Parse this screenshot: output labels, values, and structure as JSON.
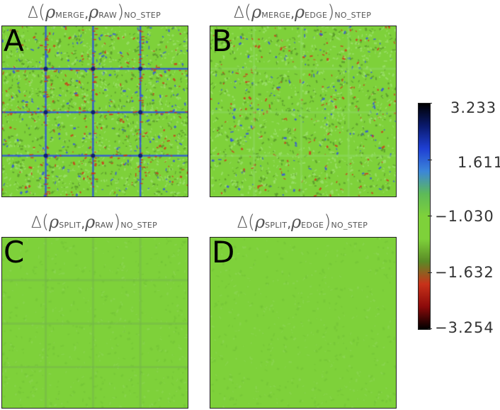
{
  "panels": [
    {
      "letter": "A",
      "rho1_sub": "MERGE",
      "rho2_sub": "RAW",
      "subscript": "NO_STEP",
      "intensity": 1.0,
      "grid_strength": 1.0,
      "grid_style": "strong"
    },
    {
      "letter": "B",
      "rho1_sub": "MERGE",
      "rho2_sub": "EDGE",
      "subscript": "NO_STEP",
      "intensity": 0.75,
      "grid_strength": 0.35,
      "grid_style": "soft"
    },
    {
      "letter": "C",
      "rho1_sub": "SPLIT",
      "rho2_sub": "RAW",
      "subscript": "NO_STEP",
      "intensity": 0.12,
      "grid_strength": 0.25,
      "grid_style": "faint"
    },
    {
      "letter": "D",
      "rho1_sub": "SPLIT",
      "rho2_sub": "EDGE",
      "subscript": "NO_STEP",
      "intensity": 0.08,
      "grid_strength": 0.0,
      "grid_style": "none"
    }
  ],
  "title_symbols": {
    "delta": "Δ",
    "open": "(",
    "rho": "ρ",
    "comma": ",",
    "close": ")"
  },
  "colorbar": {
    "labels": [
      "3.233",
      "1.611",
      "−1.030",
      "−1.632",
      "−3.254"
    ],
    "colors": [
      "#000000",
      "#0a1a6e",
      "#1e3fd4",
      "#3c86d8",
      "#5dba58",
      "#7ed13a",
      "#7ed13a",
      "#5a8a26",
      "#c8321a",
      "#8c0a0a",
      "#000000"
    ]
  },
  "colors": {
    "field_green": "#7ed13a",
    "grid_blue": "#2e55d8",
    "hot_red": "#cc3a1a",
    "axis": "#222222"
  }
}
